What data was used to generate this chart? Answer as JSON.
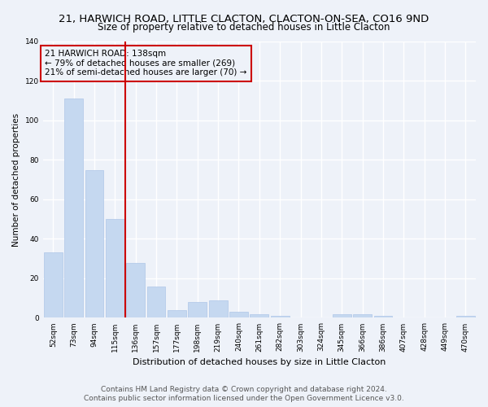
{
  "title": "21, HARWICH ROAD, LITTLE CLACTON, CLACTON-ON-SEA, CO16 9ND",
  "subtitle": "Size of property relative to detached houses in Little Clacton",
  "xlabel": "Distribution of detached houses by size in Little Clacton",
  "ylabel": "Number of detached properties",
  "categories": [
    "52sqm",
    "73sqm",
    "94sqm",
    "115sqm",
    "136sqm",
    "157sqm",
    "177sqm",
    "198sqm",
    "219sqm",
    "240sqm",
    "261sqm",
    "282sqm",
    "303sqm",
    "324sqm",
    "345sqm",
    "366sqm",
    "386sqm",
    "407sqm",
    "428sqm",
    "449sqm",
    "470sqm"
  ],
  "values": [
    33,
    111,
    75,
    50,
    28,
    16,
    4,
    8,
    9,
    3,
    2,
    1,
    0,
    0,
    2,
    2,
    1,
    0,
    0,
    0,
    1
  ],
  "bar_color": "#c5d8f0",
  "bar_edge_color": "#aec6e8",
  "property_line_color": "#cc0000",
  "annotation_box_text_line1": "21 HARWICH ROAD: 138sqm",
  "annotation_box_text_line2": "← 79% of detached houses are smaller (269)",
  "annotation_box_text_line3": "21% of semi-detached houses are larger (70) →",
  "annotation_box_color": "#cc0000",
  "ylim": [
    0,
    140
  ],
  "yticks": [
    0,
    20,
    40,
    60,
    80,
    100,
    120,
    140
  ],
  "footer_line1": "Contains HM Land Registry data © Crown copyright and database right 2024.",
  "footer_line2": "Contains public sector information licensed under the Open Government Licence v3.0.",
  "bg_color": "#eef2f9",
  "grid_color": "#ffffff",
  "title_fontsize": 9.5,
  "subtitle_fontsize": 8.5,
  "xlabel_fontsize": 8,
  "ylabel_fontsize": 7.5,
  "tick_fontsize": 6.5,
  "annotation_fontsize": 7.5,
  "footer_fontsize": 6.5
}
